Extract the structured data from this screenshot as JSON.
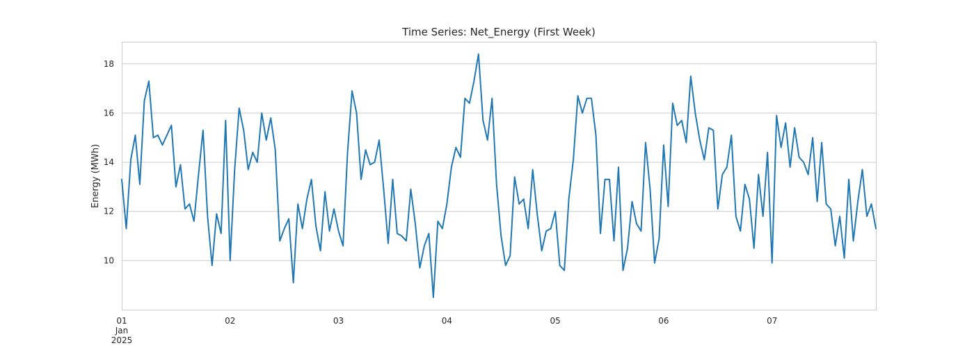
{
  "chart_data": {
    "type": "line",
    "title": "Time Series: Net_Energy (First Week)",
    "xlabel": "",
    "ylabel": "Energy (MWh)",
    "x_start": "2025-01-01T00:00",
    "x_end": "2025-01-07T23:00",
    "x_step": "1 hour",
    "xlim": [
      "2025-01-01T00:00",
      "2025-01-07T23:00"
    ],
    "ylim": [
      8.0,
      18.9
    ],
    "grid": "horizontal",
    "x_ticks": [
      {
        "x": "2025-01-01T00:00",
        "lines": [
          "01",
          "Jan",
          "2025"
        ]
      },
      {
        "x": "2025-01-02T00:00",
        "lines": [
          "02"
        ]
      },
      {
        "x": "2025-01-03T00:00",
        "lines": [
          "03"
        ]
      },
      {
        "x": "2025-01-04T00:00",
        "lines": [
          "04"
        ]
      },
      {
        "x": "2025-01-05T00:00",
        "lines": [
          "05"
        ]
      },
      {
        "x": "2025-01-06T00:00",
        "lines": [
          "06"
        ]
      },
      {
        "x": "2025-01-07T00:00",
        "lines": [
          "07"
        ]
      }
    ],
    "y_ticks": [
      10,
      12,
      14,
      16,
      18
    ],
    "series": [
      {
        "color": "#1f77b4",
        "values": [
          13.3,
          11.3,
          14.1,
          15.1,
          13.1,
          16.5,
          17.3,
          15.0,
          15.1,
          14.7,
          15.1,
          15.5,
          13.0,
          13.9,
          12.1,
          12.3,
          11.6,
          13.5,
          15.3,
          11.8,
          9.8,
          11.9,
          11.1,
          15.7,
          10.0,
          13.7,
          16.2,
          15.3,
          13.7,
          14.4,
          14.0,
          16.0,
          14.9,
          15.8,
          14.5,
          10.8,
          11.3,
          11.7,
          9.1,
          12.3,
          11.3,
          12.5,
          13.3,
          11.4,
          10.4,
          12.8,
          11.2,
          12.1,
          11.2,
          10.6,
          14.4,
          16.9,
          16.0,
          13.3,
          14.5,
          13.9,
          14.0,
          14.9,
          12.9,
          10.7,
          13.3,
          11.1,
          11.0,
          10.8,
          12.9,
          11.5,
          9.7,
          10.6,
          11.1,
          8.5,
          11.6,
          11.3,
          12.3,
          13.8,
          14.6,
          14.2,
          16.6,
          16.4,
          17.3,
          18.4,
          15.7,
          14.9,
          16.6,
          13.1,
          11.0,
          9.8,
          10.2,
          13.4,
          12.3,
          12.5,
          11.3,
          13.7,
          11.9,
          10.4,
          11.2,
          11.3,
          12.0,
          9.8,
          9.6,
          12.5,
          14.1,
          16.7,
          16.0,
          16.6,
          16.6,
          15.1,
          11.1,
          13.3,
          13.3,
          10.8,
          13.8,
          9.6,
          10.5,
          12.4,
          11.5,
          11.2,
          14.8,
          12.9,
          9.9,
          10.9,
          14.7,
          12.2,
          16.4,
          15.5,
          15.7,
          14.8,
          17.5,
          16.0,
          14.9,
          14.1,
          15.4,
          15.3,
          12.1,
          13.5,
          13.8,
          15.1,
          11.8,
          11.2,
          13.1,
          12.5,
          10.5,
          13.5,
          11.8,
          14.4,
          9.9,
          15.9,
          14.6,
          15.6,
          13.8,
          15.4,
          14.2,
          14.0,
          13.5,
          15.0,
          12.4,
          14.8,
          12.3,
          12.1,
          10.6,
          11.8,
          10.1,
          13.3,
          10.8,
          12.4,
          13.7,
          11.8,
          12.3,
          11.3
        ]
      }
    ]
  }
}
